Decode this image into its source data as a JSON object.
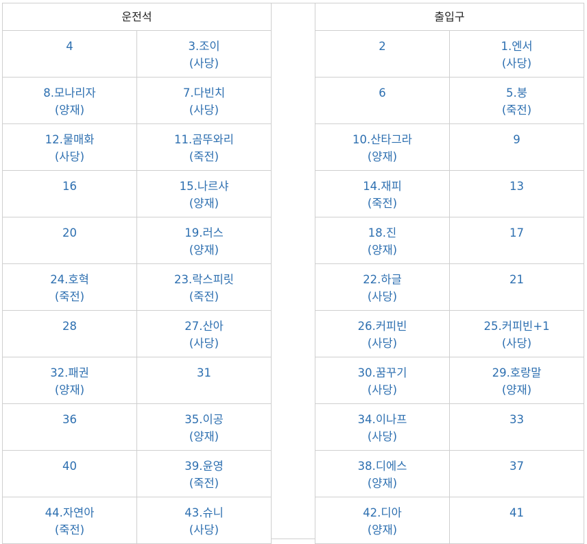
{
  "left": {
    "header": "운전석",
    "rows": [
      [
        {
          "name": "4",
          "branch": ""
        },
        {
          "name": "3.조이",
          "branch": "(사당)"
        }
      ],
      [
        {
          "name": "8.모나리자",
          "branch": "(양재)"
        },
        {
          "name": "7.다빈치",
          "branch": "(사당)"
        }
      ],
      [
        {
          "name": "12.물매화",
          "branch": "(사당)"
        },
        {
          "name": "11.곰뚜와리",
          "branch": "(죽전)"
        }
      ],
      [
        {
          "name": "16",
          "branch": ""
        },
        {
          "name": "15.나르샤",
          "branch": "(양재)"
        }
      ],
      [
        {
          "name": "20",
          "branch": ""
        },
        {
          "name": "19.러스",
          "branch": "(양재)"
        }
      ],
      [
        {
          "name": "24.호혁",
          "branch": "(죽전)"
        },
        {
          "name": "23.락스피릿",
          "branch": "(죽전)"
        }
      ],
      [
        {
          "name": "28",
          "branch": ""
        },
        {
          "name": "27.산아",
          "branch": "(사당)"
        }
      ],
      [
        {
          "name": "32.패권",
          "branch": "(양재)"
        },
        {
          "name": "31",
          "branch": ""
        }
      ],
      [
        {
          "name": "36",
          "branch": ""
        },
        {
          "name": "35.이공",
          "branch": "(양재)"
        }
      ],
      [
        {
          "name": "40",
          "branch": ""
        },
        {
          "name": "39.윤영",
          "branch": "(죽전)"
        }
      ],
      [
        {
          "name": "44.자연아",
          "branch": "(죽전)"
        },
        {
          "name": "43.슈니",
          "branch": "(사당)"
        }
      ]
    ]
  },
  "right": {
    "header": "출입구",
    "rows": [
      [
        {
          "name": "2",
          "branch": ""
        },
        {
          "name": "1.엔서",
          "branch": "(사당)"
        }
      ],
      [
        {
          "name": "6",
          "branch": ""
        },
        {
          "name": "5.붕",
          "branch": "(죽전)"
        }
      ],
      [
        {
          "name": "10.산타그라",
          "branch": "(양재)"
        },
        {
          "name": "9",
          "branch": ""
        }
      ],
      [
        {
          "name": "14.재피",
          "branch": "(죽전)"
        },
        {
          "name": "13",
          "branch": ""
        }
      ],
      [
        {
          "name": "18.진",
          "branch": "(양재)"
        },
        {
          "name": "17",
          "branch": ""
        }
      ],
      [
        {
          "name": "22.하글",
          "branch": "(사당)"
        },
        {
          "name": "21",
          "branch": ""
        }
      ],
      [
        {
          "name": "26.커피빈",
          "branch": "(사당)"
        },
        {
          "name": "25.커피빈+1",
          "branch": "(사당)"
        }
      ],
      [
        {
          "name": "30.꿈꾸기",
          "branch": "(사당)"
        },
        {
          "name": "29.호랑말",
          "branch": "(양재)"
        }
      ],
      [
        {
          "name": "34.이나프",
          "branch": "(사당)"
        },
        {
          "name": "33",
          "branch": ""
        }
      ],
      [
        {
          "name": "38.디에스",
          "branch": "(양재)"
        },
        {
          "name": "37",
          "branch": ""
        }
      ],
      [
        {
          "name": "42.디아",
          "branch": "(양재)"
        },
        {
          "name": "41",
          "branch": ""
        }
      ]
    ]
  },
  "colors": {
    "text": "#2d6fb0",
    "header": "#222222",
    "border": "#cfcfcf"
  }
}
